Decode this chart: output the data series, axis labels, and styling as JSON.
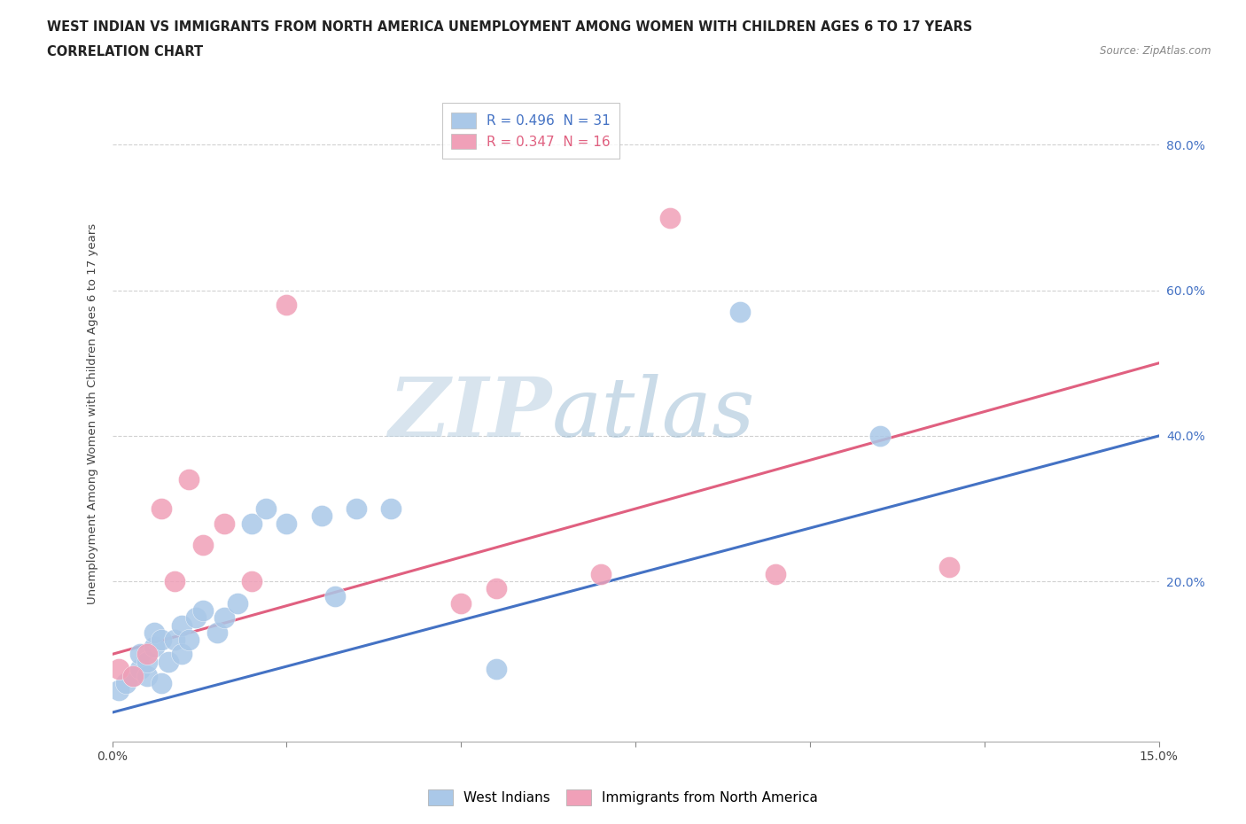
{
  "title_line1": "WEST INDIAN VS IMMIGRANTS FROM NORTH AMERICA UNEMPLOYMENT AMONG WOMEN WITH CHILDREN AGES 6 TO 17 YEARS",
  "title_line2": "CORRELATION CHART",
  "source": "Source: ZipAtlas.com",
  "ylabel": "Unemployment Among Women with Children Ages 6 to 17 years",
  "ytick_labels": [
    "20.0%",
    "40.0%",
    "60.0%",
    "80.0%"
  ],
  "xlim": [
    0.0,
    0.15
  ],
  "ylim": [
    -0.02,
    0.88
  ],
  "yticks": [
    0.2,
    0.4,
    0.6,
    0.8
  ],
  "watermark_zip": "ZIP",
  "watermark_atlas": "atlas",
  "legend_r1": "R = 0.496  N = 31",
  "legend_r2": "R = 0.347  N = 16",
  "blue_color": "#aac8e8",
  "pink_color": "#f0a0b8",
  "blue_line_color": "#4472c4",
  "pink_line_color": "#e06080",
  "west_indians_x": [
    0.001,
    0.002,
    0.003,
    0.004,
    0.004,
    0.005,
    0.005,
    0.006,
    0.006,
    0.007,
    0.007,
    0.008,
    0.009,
    0.01,
    0.01,
    0.011,
    0.012,
    0.013,
    0.015,
    0.016,
    0.018,
    0.02,
    0.022,
    0.025,
    0.03,
    0.032,
    0.035,
    0.04,
    0.055,
    0.09,
    0.11
  ],
  "west_indians_y": [
    0.05,
    0.06,
    0.07,
    0.08,
    0.1,
    0.07,
    0.09,
    0.11,
    0.13,
    0.06,
    0.12,
    0.09,
    0.12,
    0.1,
    0.14,
    0.12,
    0.15,
    0.16,
    0.13,
    0.15,
    0.17,
    0.28,
    0.3,
    0.28,
    0.29,
    0.18,
    0.3,
    0.3,
    0.08,
    0.57,
    0.4
  ],
  "immigrants_x": [
    0.001,
    0.003,
    0.005,
    0.007,
    0.009,
    0.011,
    0.013,
    0.016,
    0.02,
    0.025,
    0.05,
    0.055,
    0.07,
    0.08,
    0.095,
    0.12
  ],
  "immigrants_y": [
    0.08,
    0.07,
    0.1,
    0.3,
    0.2,
    0.34,
    0.25,
    0.28,
    0.2,
    0.58,
    0.17,
    0.19,
    0.21,
    0.7,
    0.21,
    0.22
  ],
  "blue_line_x0": 0.0,
  "blue_line_x1": 0.15,
  "blue_line_y0": 0.02,
  "blue_line_y1": 0.4,
  "pink_line_x0": 0.0,
  "pink_line_x1": 0.15,
  "pink_line_y0": 0.1,
  "pink_line_y1": 0.5,
  "background_color": "#ffffff",
  "grid_color": "#cccccc"
}
